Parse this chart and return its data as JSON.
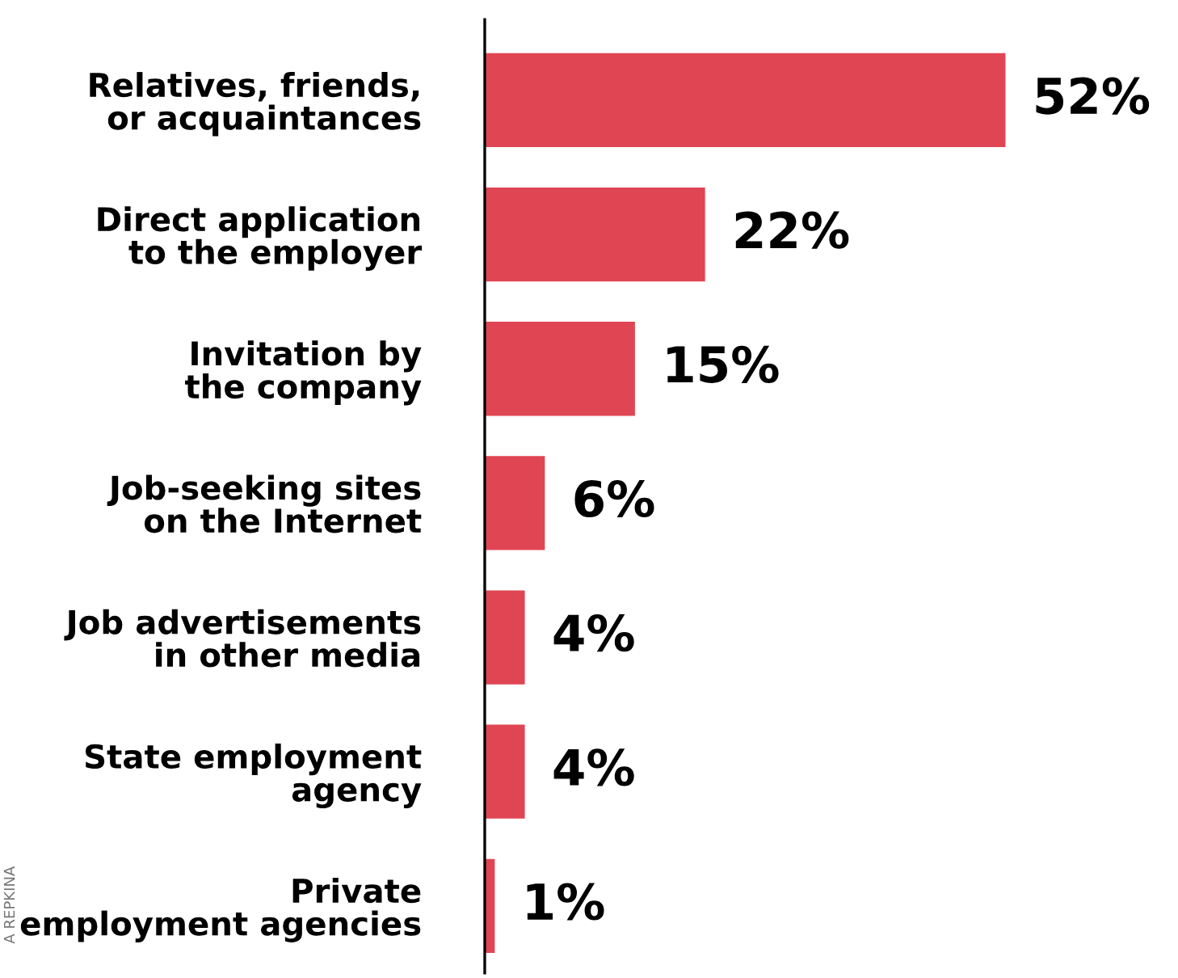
{
  "chart_data": {
    "type": "bar",
    "orientation": "horizontal",
    "categories": [
      "Relatives, friends,\nor acquaintances",
      "Direct application\nto the employer",
      "Invitation by\nthe company",
      "Job-seeking sites\non the Internet",
      "Job advertisements\nin other media",
      "State employment\nagency",
      "Private\nemployment agencies"
    ],
    "values": [
      52,
      22,
      15,
      6,
      4,
      4,
      1
    ],
    "color": "#e04553",
    "value_labels": [
      "52%",
      "22%",
      "15%",
      "6%",
      "4%",
      "4%",
      "1%"
    ],
    "annotations": [
      "A REPKINA"
    ]
  }
}
